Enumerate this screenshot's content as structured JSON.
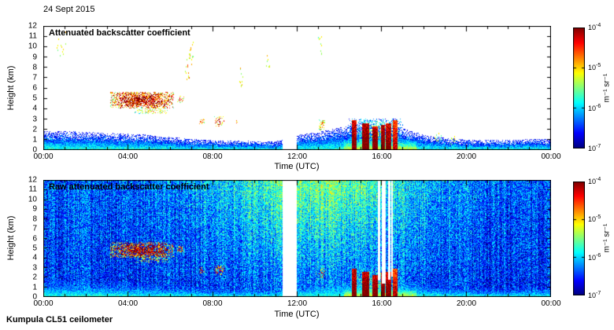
{
  "header": {
    "date": "24 Sept 2015"
  },
  "footer": {
    "text": "Kumpula CL51 ceilometer"
  },
  "chart_data": [
    {
      "type": "heatmap",
      "title": "Attenuated backscatter coefficient",
      "xlabel": "Time (UTC)",
      "ylabel": "Height (km)",
      "x_ticks": [
        "00:00",
        "04:00",
        "08:00",
        "12:00",
        "16:00",
        "20:00",
        "00:00"
      ],
      "xlim_hours": [
        0,
        24
      ],
      "y_ticks": [
        0,
        1,
        2,
        3,
        4,
        5,
        6,
        7,
        8,
        9,
        10,
        11,
        12
      ],
      "ylim_km": [
        0,
        12
      ],
      "grid": false,
      "colorbar": {
        "label": "m⁻¹ sr⁻¹",
        "tick_exponents": [
          -4,
          -5,
          -6,
          -7
        ],
        "log10_range": [
          -7,
          -4
        ],
        "colormap": "jet"
      },
      "features": {
        "threshold_log10": -6.75,
        "gaps_hours": [
          [
            11.3,
            11.95
          ]
        ],
        "boundary_layer": {
          "top_km_by_hour": [
            1.9,
            1.85,
            1.8,
            1.7,
            1.6,
            1.5,
            1.3,
            1.1,
            1.0,
            0.95,
            0.9,
            0.9,
            1.5,
            1.8,
            2.2,
            2.6,
            2.55,
            2.1,
            1.5,
            1.2,
            1.05,
            1.0,
            1.0,
            1.1,
            1.1
          ],
          "surface_log10": -5.7,
          "lapse": 1.3,
          "noise": 0.55,
          "boost": {
            "t0": 14.2,
            "t1": 17.6,
            "amount": 0.55,
            "below_km": 1.2
          }
        },
        "surface_line": {
          "top_km": 0.12,
          "log10": -4.8,
          "noise": 0.5,
          "hours": [
            [
              0,
              11.3
            ],
            [
              12,
              17.6
            ]
          ]
        },
        "cloud_bands": [
          {
            "t0": 3.15,
            "t1": 6.15,
            "base_km": 4.05,
            "top_km": 5.65,
            "log10": -4.55,
            "noise": 0.85,
            "fill": 0.8
          },
          {
            "t0": 4.3,
            "t1": 5.9,
            "base_km": 3.5,
            "top_km": 4.2,
            "log10": -5.4,
            "noise": 0.6,
            "fill": 0.35
          },
          {
            "t0": 6.3,
            "t1": 6.65,
            "base_km": 4.6,
            "top_km": 5.25,
            "log10": -5.0,
            "noise": 0.6,
            "fill": 0.5
          },
          {
            "t0": 7.35,
            "t1": 7.6,
            "base_km": 2.45,
            "top_km": 3.1,
            "log10": -4.9,
            "noise": 0.6,
            "fill": 0.45
          },
          {
            "t0": 8.05,
            "t1": 8.55,
            "base_km": 2.3,
            "top_km": 3.3,
            "log10": -4.8,
            "noise": 0.7,
            "fill": 0.4
          },
          {
            "t0": 9.0,
            "t1": 9.18,
            "base_km": 2.5,
            "top_km": 2.95,
            "log10": -5.0,
            "noise": 0.5,
            "fill": 0.4
          },
          {
            "t0": 13.0,
            "t1": 13.3,
            "base_km": 1.9,
            "top_km": 3.0,
            "log10": -5.2,
            "noise": 0.6,
            "fill": 0.45
          },
          {
            "t0": 14.4,
            "t1": 17.0,
            "base_km": 0.0,
            "top_km": 3.1,
            "log10": -6.0,
            "noise": 0.5,
            "fill": 0.55
          }
        ],
        "precip_columns": [
          {
            "t0": 14.55,
            "t1": 14.78,
            "top_km": 2.9,
            "log10": -4.3
          },
          {
            "t0": 15.05,
            "t1": 15.38,
            "top_km": 2.6,
            "log10": -4.2
          },
          {
            "t0": 15.55,
            "t1": 15.78,
            "top_km": 2.3,
            "log10": -4.25
          },
          {
            "t0": 15.95,
            "t1": 16.12,
            "top_km": 2.5,
            "log10": -4.2
          },
          {
            "t0": 16.18,
            "t1": 16.42,
            "top_km": 2.6,
            "log10": -4.3
          },
          {
            "t0": 16.5,
            "t1": 16.72,
            "top_km": 2.9,
            "log10": -4.6
          }
        ],
        "speck_clusters": [
          {
            "t": 0.9,
            "h_km": 10.3,
            "dt": 0.25,
            "dh": 1.2,
            "n": 14,
            "log10": -5.2
          },
          {
            "t": 6.85,
            "h_km": 8.3,
            "dt": 0.15,
            "dh": 1.7,
            "n": 18,
            "log10": -5.0
          },
          {
            "t": 7.0,
            "h_km": 9.7,
            "dt": 0.1,
            "dh": 0.9,
            "n": 8,
            "log10": -5.4
          },
          {
            "t": 9.35,
            "h_km": 7.2,
            "dt": 0.12,
            "dh": 1.3,
            "n": 10,
            "log10": -5.2
          },
          {
            "t": 10.6,
            "h_km": 8.6,
            "dt": 0.1,
            "dh": 0.9,
            "n": 8,
            "log10": -5.3
          },
          {
            "t": 13.05,
            "h_km": 9.9,
            "dt": 0.1,
            "dh": 1.2,
            "n": 9,
            "log10": -5.3
          },
          {
            "t": 18.6,
            "h_km": 1.3,
            "dt": 0.2,
            "dh": 0.4,
            "n": 10,
            "log10": -5.4
          },
          {
            "t": 19.35,
            "h_km": 1.0,
            "dt": 0.15,
            "dh": 0.4,
            "n": 8,
            "log10": -5.2
          }
        ]
      }
    },
    {
      "type": "heatmap",
      "title": "Raw attenuated backscatter coefficient",
      "xlabel": "Time (UTC)",
      "ylabel": "Height (km)",
      "x_ticks": [
        "00:00",
        "04:00",
        "08:00",
        "12:00",
        "16:00",
        "20:00",
        "00:00"
      ],
      "xlim_hours": [
        0,
        24
      ],
      "y_ticks": [
        0,
        1,
        2,
        3,
        4,
        5,
        6,
        7,
        8,
        9,
        10,
        11,
        12
      ],
      "ylim_km": [
        0,
        12
      ],
      "grid": false,
      "colorbar": {
        "label": "m⁻¹ sr⁻¹",
        "tick_exponents": [
          -4,
          -5,
          -6,
          -7
        ],
        "log10_range": [
          -7,
          -4
        ],
        "colormap": "jet"
      },
      "features": {
        "threshold_log10": -7.3,
        "gaps_hours": [
          [
            11.3,
            11.95
          ]
        ],
        "white_stripes": [
          [
            15.8,
            15.92,
            1.7
          ],
          [
            16.0,
            16.18,
            1.4
          ],
          [
            16.27,
            16.38,
            1.8
          ],
          [
            16.44,
            16.52,
            2.1
          ]
        ],
        "noise": {
          "base_log10": -6.55,
          "amp": 0.5,
          "col_amp": 0.22,
          "day_center": 13.0,
          "day_sigma": 3.6,
          "day_boost": 0.55,
          "height_boost": 0.5
        },
        "boundary_layer": {
          "top_km_by_hour": [
            1.9,
            1.85,
            1.8,
            1.7,
            1.6,
            1.5,
            1.3,
            1.1,
            1.0,
            0.95,
            0.9,
            0.9,
            1.5,
            1.8,
            2.2,
            2.6,
            2.55,
            2.1,
            1.5,
            1.2,
            1.05,
            1.0,
            1.0,
            1.1,
            1.1
          ],
          "surface_log10": -5.7,
          "lapse": 1.3,
          "noise": 0.55,
          "boost": {
            "t0": 14.2,
            "t1": 17.6,
            "amount": 0.55,
            "below_km": 1.2
          }
        },
        "surface_line": {
          "top_km": 0.12,
          "log10": -4.8,
          "noise": 0.5,
          "hours": [
            [
              0,
              11.3
            ],
            [
              12,
              19.0
            ]
          ]
        },
        "cloud_bands": [
          {
            "t0": 3.15,
            "t1": 6.15,
            "base_km": 4.05,
            "top_km": 5.65,
            "log10": -4.55,
            "noise": 0.85,
            "fill": 0.8
          },
          {
            "t0": 4.3,
            "t1": 5.9,
            "base_km": 3.5,
            "top_km": 4.2,
            "log10": -5.4,
            "noise": 0.6,
            "fill": 0.35
          },
          {
            "t0": 6.3,
            "t1": 6.65,
            "base_km": 4.6,
            "top_km": 5.25,
            "log10": -5.0,
            "noise": 0.6,
            "fill": 0.5
          },
          {
            "t0": 7.35,
            "t1": 7.6,
            "base_km": 2.45,
            "top_km": 3.1,
            "log10": -4.9,
            "noise": 0.6,
            "fill": 0.45
          },
          {
            "t0": 8.05,
            "t1": 8.55,
            "base_km": 2.3,
            "top_km": 3.3,
            "log10": -4.8,
            "noise": 0.7,
            "fill": 0.4
          },
          {
            "t0": 13.0,
            "t1": 13.3,
            "base_km": 1.9,
            "top_km": 3.0,
            "log10": -5.2,
            "noise": 0.6,
            "fill": 0.45
          },
          {
            "t0": 14.4,
            "t1": 17.0,
            "base_km": 0.0,
            "top_km": 3.1,
            "log10": -6.0,
            "noise": 0.5,
            "fill": 0.55
          }
        ],
        "precip_columns": [
          {
            "t0": 14.55,
            "t1": 14.78,
            "top_km": 2.9,
            "log10": -4.3
          },
          {
            "t0": 15.05,
            "t1": 15.38,
            "top_km": 2.6,
            "log10": -4.2
          },
          {
            "t0": 15.55,
            "t1": 15.78,
            "top_km": 2.3,
            "log10": -4.25
          },
          {
            "t0": 15.95,
            "t1": 16.12,
            "top_km": 2.5,
            "log10": -4.2
          },
          {
            "t0": 16.18,
            "t1": 16.42,
            "top_km": 2.6,
            "log10": -4.3
          },
          {
            "t0": 16.5,
            "t1": 16.72,
            "top_km": 2.9,
            "log10": -4.6
          }
        ],
        "speck_clusters": []
      }
    }
  ]
}
